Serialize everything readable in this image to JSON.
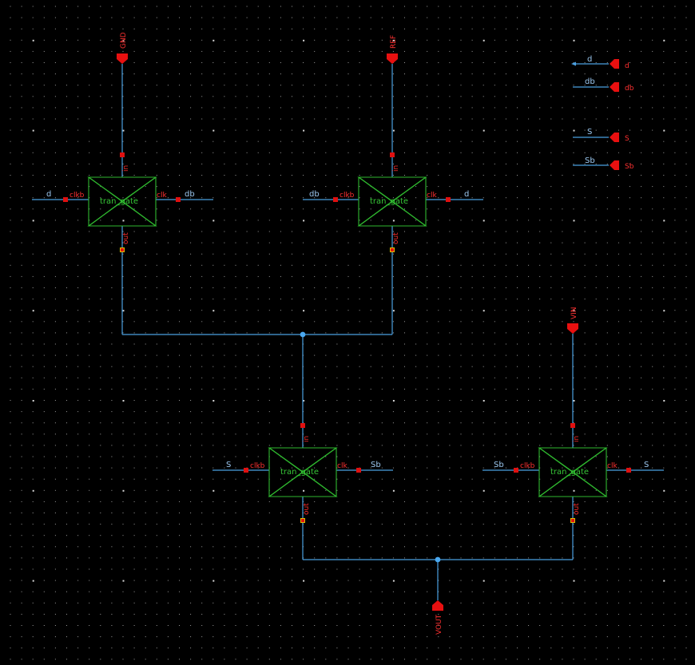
{
  "cell": "tran_gate",
  "pins": {
    "in": "in",
    "out": "out",
    "clk": "clk",
    "clkb": "clkb"
  },
  "instances": [
    {
      "id": "g1",
      "in_net": "GND",
      "clkb_net": "d",
      "clk_net": "db"
    },
    {
      "id": "g2",
      "in_net": "REF",
      "clkb_net": "db",
      "clk_net": "d"
    },
    {
      "id": "g3",
      "clkb_net": "S",
      "clk_net": "Sb"
    },
    {
      "id": "g4",
      "in_net": "VIN",
      "clkb_net": "Sb",
      "clk_net": "S"
    }
  ],
  "ports": {
    "top": [
      "GND",
      "REF",
      "VIN"
    ],
    "bottom": [
      "VOUT"
    ],
    "side": [
      {
        "net": "d",
        "label": "d"
      },
      {
        "net": "db",
        "label": "db"
      },
      {
        "net": "S",
        "label": "S"
      },
      {
        "net": "Sb",
        "label": "Sb"
      }
    ]
  },
  "colors": {
    "background": "#000000",
    "wire": "#4a9fe0",
    "gate": "#2fb82f",
    "pin": "#e01010",
    "grid": "#9a9a9a"
  }
}
